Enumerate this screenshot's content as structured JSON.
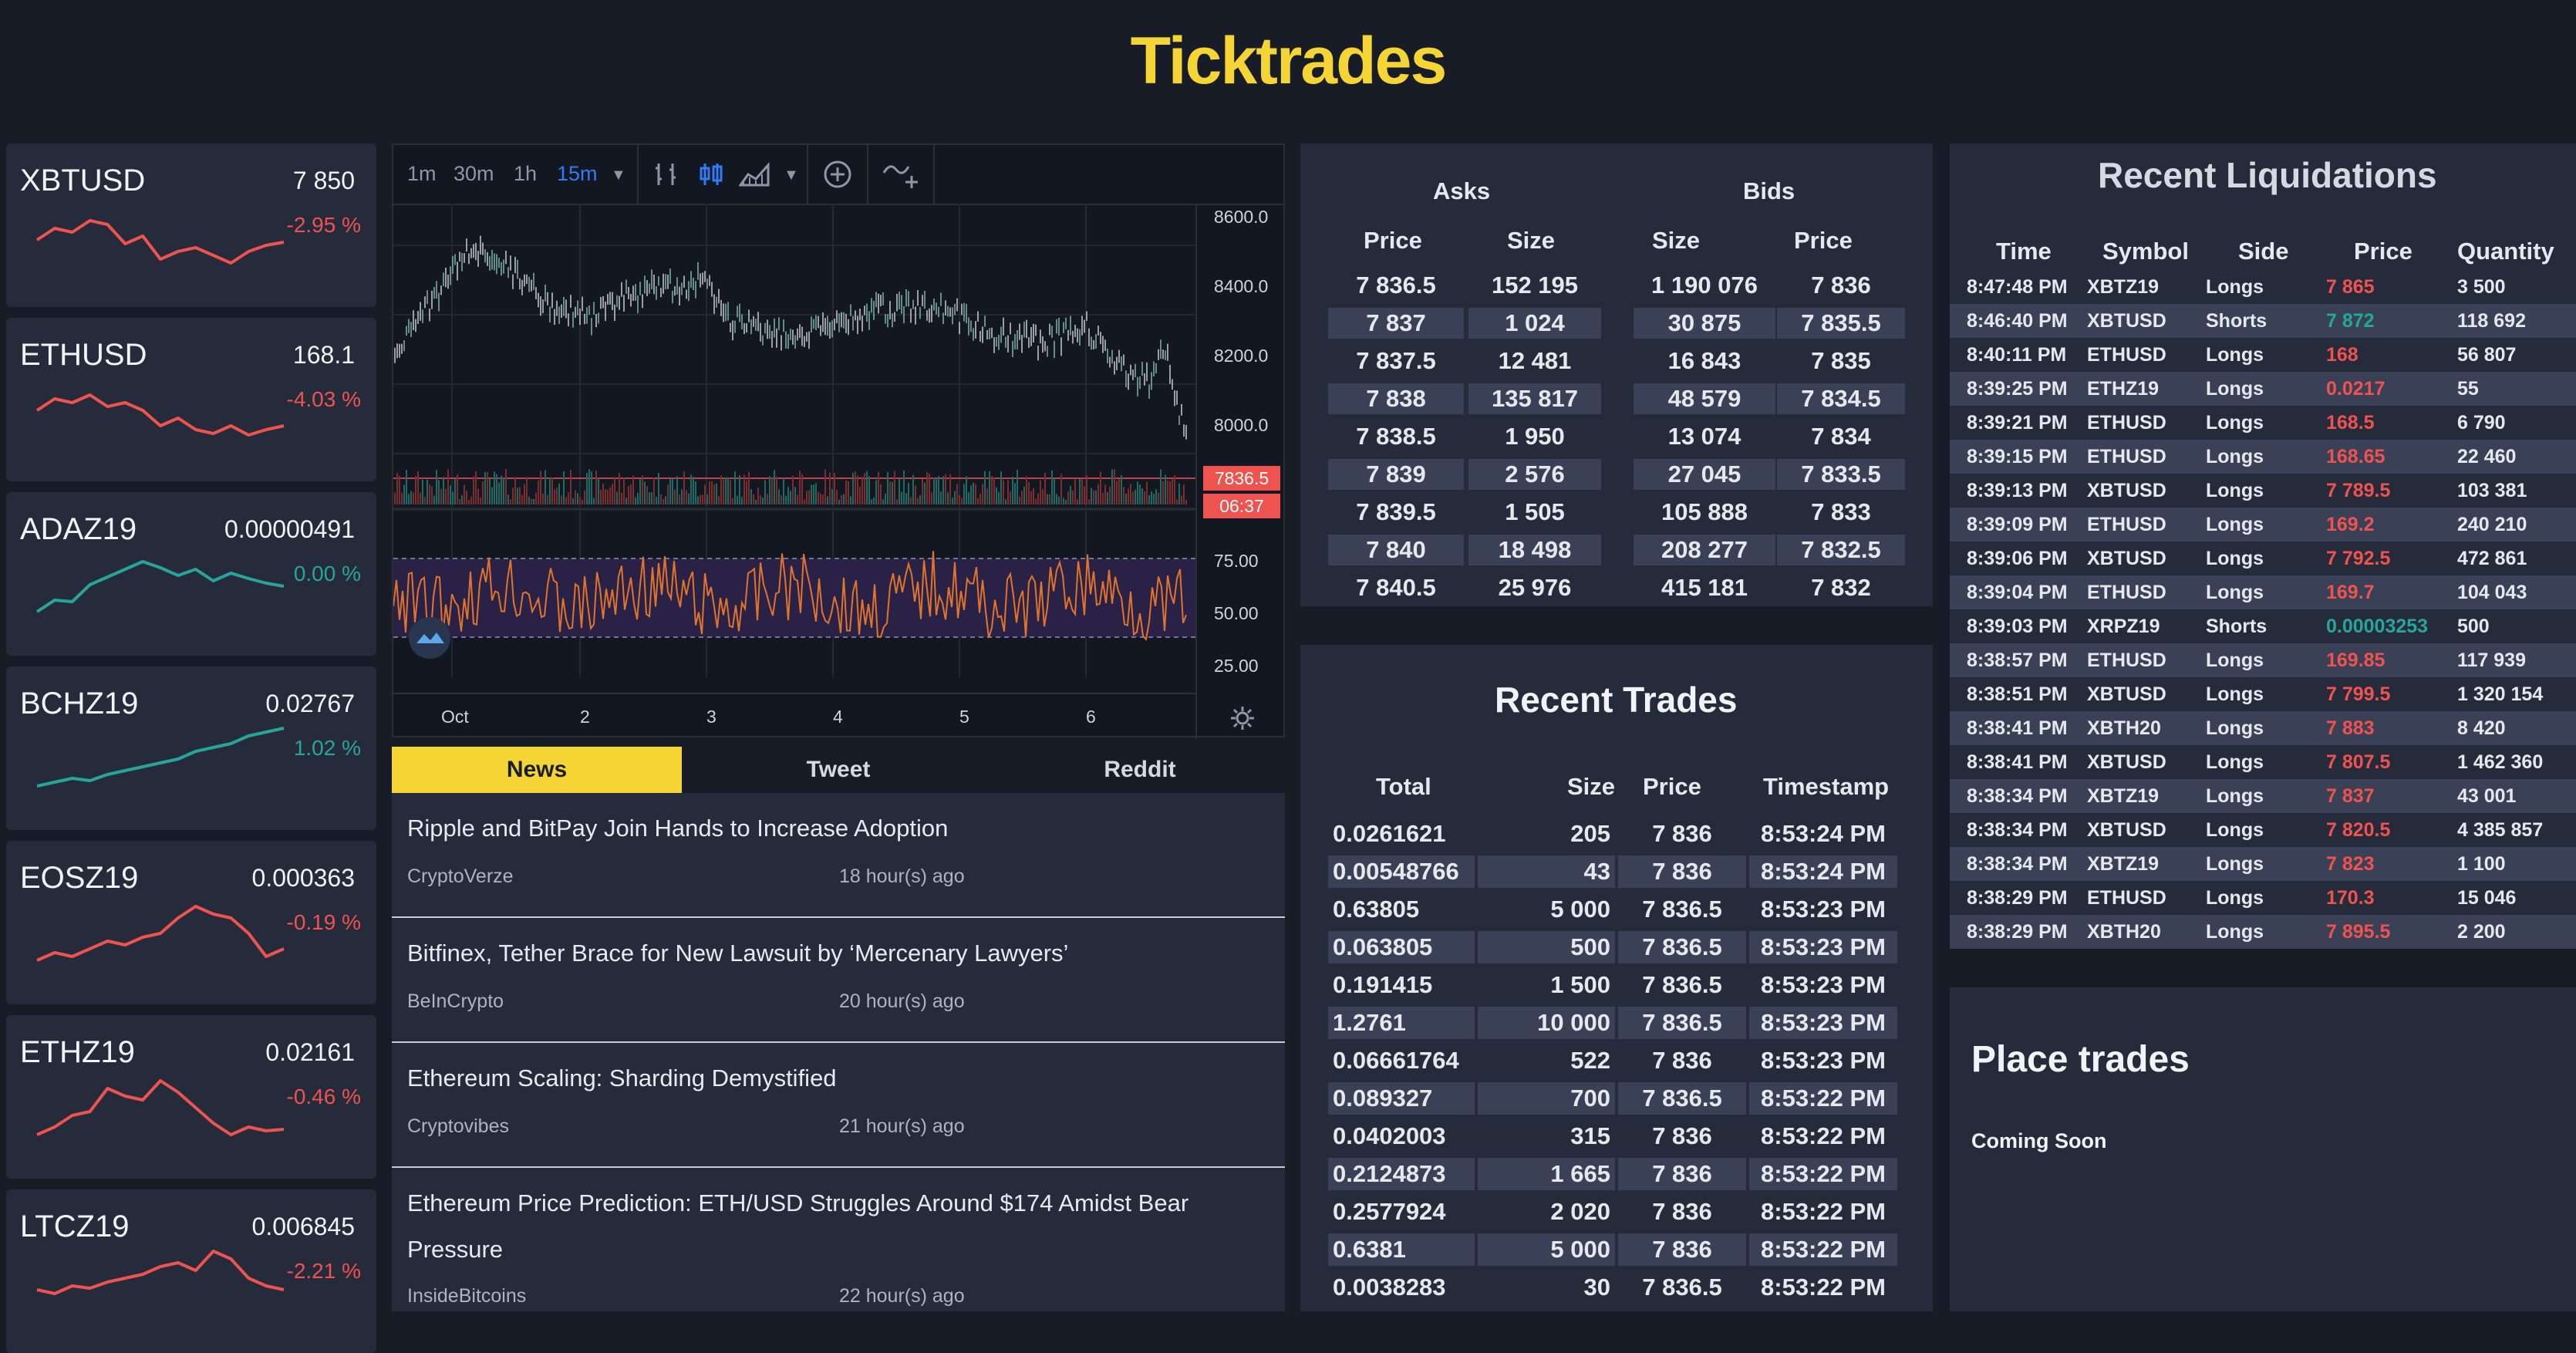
{
  "app": {
    "title": "Ticktrades"
  },
  "colors": {
    "accent": "#f5d535",
    "up": "#26a69a",
    "down": "#ef5350"
  },
  "tickers": [
    {
      "symbol": "XBTUSD",
      "price": "7 850",
      "change": "-2.95 %",
      "dir": "down",
      "spark": [
        0.55,
        0.4,
        0.45,
        0.3,
        0.35,
        0.6,
        0.5,
        0.8,
        0.7,
        0.65,
        0.75,
        0.85,
        0.7,
        0.62,
        0.58
      ]
    },
    {
      "symbol": "ETHUSD",
      "price": "168.1",
      "change": "-4.03 %",
      "dir": "down",
      "spark": [
        0.5,
        0.35,
        0.4,
        0.3,
        0.45,
        0.4,
        0.5,
        0.7,
        0.6,
        0.75,
        0.8,
        0.7,
        0.82,
        0.75,
        0.7
      ]
    },
    {
      "symbol": "ADAZ19",
      "price": "0.00000491",
      "change": "0.00 %",
      "dir": "up",
      "spark": [
        0.85,
        0.7,
        0.72,
        0.5,
        0.4,
        0.3,
        0.2,
        0.28,
        0.38,
        0.3,
        0.45,
        0.35,
        0.42,
        0.48,
        0.52
      ]
    },
    {
      "symbol": "BCHZ19",
      "price": "0.02767",
      "change": "1.02 %",
      "dir": "up",
      "spark": [
        0.85,
        0.8,
        0.75,
        0.78,
        0.7,
        0.65,
        0.6,
        0.55,
        0.5,
        0.4,
        0.35,
        0.3,
        0.2,
        0.15,
        0.1
      ]
    },
    {
      "symbol": "EOSZ19",
      "price": "0.000363",
      "change": "-0.19 %",
      "dir": "down",
      "spark": [
        0.85,
        0.75,
        0.8,
        0.7,
        0.6,
        0.65,
        0.55,
        0.5,
        0.3,
        0.15,
        0.25,
        0.3,
        0.5,
        0.8,
        0.7
      ]
    },
    {
      "symbol": "ETHZ19",
      "price": "0.02161",
      "change": "-0.46 %",
      "dir": "down",
      "spark": [
        0.85,
        0.75,
        0.6,
        0.55,
        0.25,
        0.35,
        0.4,
        0.15,
        0.3,
        0.5,
        0.7,
        0.85,
        0.75,
        0.8,
        0.78
      ]
    },
    {
      "symbol": "LTCZ19",
      "price": "0.006845",
      "change": "-2.21 %",
      "dir": "down",
      "spark": [
        0.6,
        0.65,
        0.55,
        0.58,
        0.5,
        0.45,
        0.4,
        0.3,
        0.25,
        0.35,
        0.1,
        0.2,
        0.45,
        0.55,
        0.6
      ]
    }
  ],
  "chart": {
    "intervals": [
      "1m",
      "30m",
      "1h",
      "15m"
    ],
    "active_interval": "15m",
    "price_axis": [
      "8600.0",
      "8400.0",
      "8200.0",
      "8000.0"
    ],
    "last_price": "7836.5",
    "countdown": "06:37",
    "rsi_axis": [
      "75.00",
      "50.00",
      "25.00"
    ],
    "x_labels": [
      "Oct",
      "2",
      "3",
      "4",
      "5",
      "6"
    ]
  },
  "news": {
    "tabs": [
      "News",
      "Tweet",
      "Reddit"
    ],
    "items": [
      {
        "title": "Ripple and BitPay Join Hands to Increase Adoption",
        "source": "CryptoVerze",
        "time": "18 hour(s) ago"
      },
      {
        "title": "Bitfinex, Tether Brace for New Lawsuit by ‘Mercenary Lawyers’",
        "source": "BeInCrypto",
        "time": "20 hour(s) ago"
      },
      {
        "title": "Ethereum Scaling: Sharding Demystified",
        "source": "Cryptovibes",
        "time": "21 hour(s) ago"
      },
      {
        "title": "Ethereum Price Prediction: ETH/USD Struggles Around $174 Amidst Bear Pressure",
        "source": "InsideBitcoins",
        "time": "22 hour(s) ago"
      }
    ]
  },
  "orderbook": {
    "asks_label": "Asks",
    "bids_label": "Bids",
    "headers": [
      "Price",
      "Size",
      "Size",
      "Price"
    ],
    "asks": [
      [
        "7 836.5",
        "152 195"
      ],
      [
        "7 837",
        "1 024"
      ],
      [
        "7 837.5",
        "12 481"
      ],
      [
        "7 838",
        "135 817"
      ],
      [
        "7 838.5",
        "1 950"
      ],
      [
        "7 839",
        "2 576"
      ],
      [
        "7 839.5",
        "1 505"
      ],
      [
        "7 840",
        "18 498"
      ],
      [
        "7 840.5",
        "25 976"
      ]
    ],
    "bids": [
      [
        "1 190 076",
        "7 836"
      ],
      [
        "30 875",
        "7 835.5"
      ],
      [
        "16 843",
        "7 835"
      ],
      [
        "48 579",
        "7 834.5"
      ],
      [
        "13 074",
        "7 834"
      ],
      [
        "27 045",
        "7 833.5"
      ],
      [
        "105 888",
        "7 833"
      ],
      [
        "208 277",
        "7 832.5"
      ],
      [
        "415 181",
        "7 832"
      ]
    ]
  },
  "trades": {
    "title": "Recent Trades",
    "headers": [
      "Total",
      "Size",
      "Price",
      "Timestamp"
    ],
    "rows": [
      [
        "0.0261621",
        "205",
        "7 836",
        "8:53:24 PM"
      ],
      [
        "0.00548766",
        "43",
        "7 836",
        "8:53:24 PM"
      ],
      [
        "0.63805",
        "5 000",
        "7 836.5",
        "8:53:23 PM"
      ],
      [
        "0.063805",
        "500",
        "7 836.5",
        "8:53:23 PM"
      ],
      [
        "0.191415",
        "1 500",
        "7 836.5",
        "8:53:23 PM"
      ],
      [
        "1.2761",
        "10 000",
        "7 836.5",
        "8:53:23 PM"
      ],
      [
        "0.06661764",
        "522",
        "7 836",
        "8:53:23 PM"
      ],
      [
        "0.089327",
        "700",
        "7 836.5",
        "8:53:22 PM"
      ],
      [
        "0.0402003",
        "315",
        "7 836",
        "8:53:22 PM"
      ],
      [
        "0.2124873",
        "1 665",
        "7 836",
        "8:53:22 PM"
      ],
      [
        "0.2577924",
        "2 020",
        "7 836",
        "8:53:22 PM"
      ],
      [
        "0.6381",
        "5 000",
        "7 836",
        "8:53:22 PM"
      ],
      [
        "0.0038283",
        "30",
        "7 836.5",
        "8:53:22 PM"
      ]
    ]
  },
  "liquidations": {
    "title": "Recent Liquidations",
    "headers": [
      "Time",
      "Symbol",
      "Side",
      "Price",
      "Quantity"
    ],
    "rows": [
      [
        "8:47:48 PM",
        "XBTZ19",
        "Longs",
        "7 865",
        "3 500",
        "down"
      ],
      [
        "8:46:40 PM",
        "XBTUSD",
        "Shorts",
        "7 872",
        "118 692",
        "up"
      ],
      [
        "8:40:11 PM",
        "ETHUSD",
        "Longs",
        "168",
        "56 807",
        "down"
      ],
      [
        "8:39:25 PM",
        "ETHZ19",
        "Longs",
        "0.0217",
        "55",
        "down"
      ],
      [
        "8:39:21 PM",
        "ETHUSD",
        "Longs",
        "168.5",
        "6 790",
        "down"
      ],
      [
        "8:39:15 PM",
        "ETHUSD",
        "Longs",
        "168.65",
        "22 460",
        "down"
      ],
      [
        "8:39:13 PM",
        "XBTUSD",
        "Longs",
        "7 789.5",
        "103 381",
        "down"
      ],
      [
        "8:39:09 PM",
        "ETHUSD",
        "Longs",
        "169.2",
        "240 210",
        "down"
      ],
      [
        "8:39:06 PM",
        "XBTUSD",
        "Longs",
        "7 792.5",
        "472 861",
        "down"
      ],
      [
        "8:39:04 PM",
        "ETHUSD",
        "Longs",
        "169.7",
        "104 043",
        "down"
      ],
      [
        "8:39:03 PM",
        "XRPZ19",
        "Shorts",
        "0.00003253",
        "500",
        "up"
      ],
      [
        "8:38:57 PM",
        "ETHUSD",
        "Longs",
        "169.85",
        "117 939",
        "down"
      ],
      [
        "8:38:51 PM",
        "XBTUSD",
        "Longs",
        "7 799.5",
        "1 320 154",
        "down"
      ],
      [
        "8:38:41 PM",
        "XBTH20",
        "Longs",
        "7 883",
        "8 420",
        "down"
      ],
      [
        "8:38:41 PM",
        "XBTUSD",
        "Longs",
        "7 807.5",
        "1 462 360",
        "down"
      ],
      [
        "8:38:34 PM",
        "XBTZ19",
        "Longs",
        "7 837",
        "43 001",
        "down"
      ],
      [
        "8:38:34 PM",
        "XBTUSD",
        "Longs",
        "7 820.5",
        "4 385 857",
        "down"
      ],
      [
        "8:38:34 PM",
        "XBTZ19",
        "Longs",
        "7 823",
        "1 100",
        "down"
      ],
      [
        "8:38:29 PM",
        "ETHUSD",
        "Longs",
        "170.3",
        "15 046",
        "down"
      ],
      [
        "8:38:29 PM",
        "XBTH20",
        "Longs",
        "7 895.5",
        "2 200",
        "down"
      ]
    ]
  },
  "place_trades": {
    "title": "Place trades",
    "subtitle": "Coming Soon"
  }
}
